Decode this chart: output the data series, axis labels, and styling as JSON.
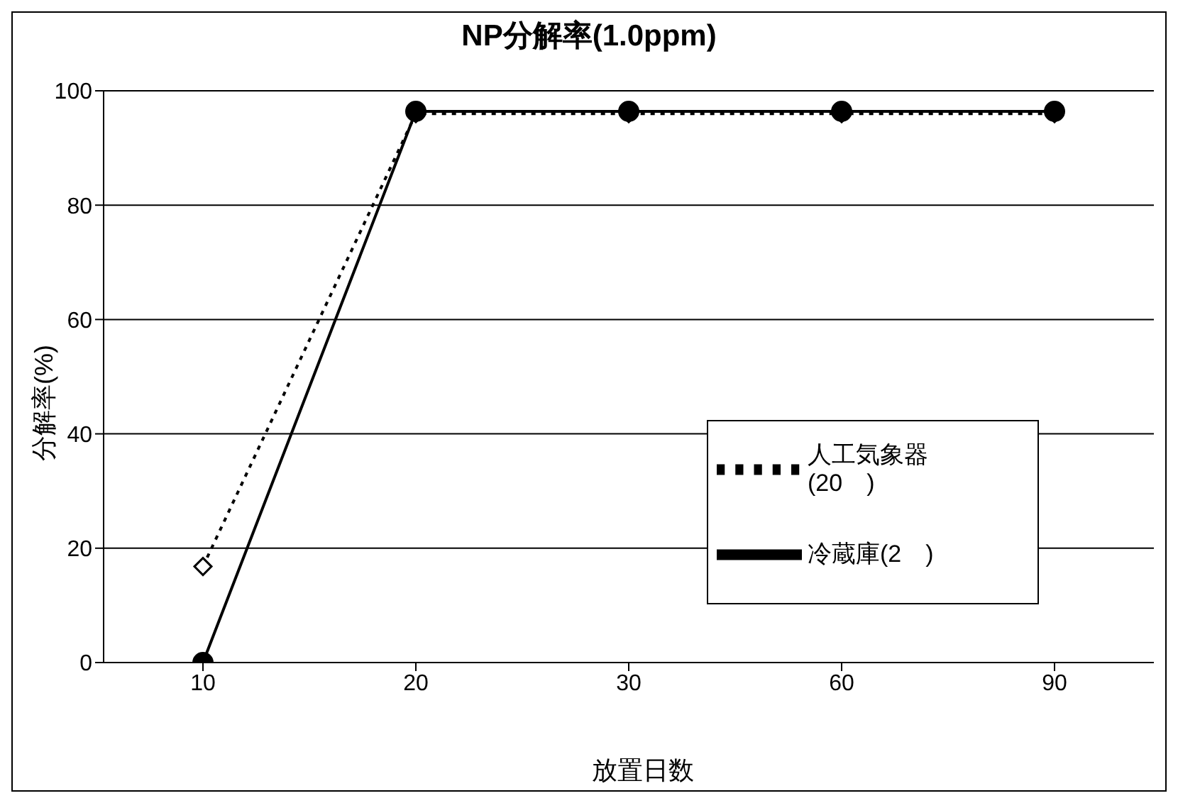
{
  "chart_data": {
    "type": "line",
    "title": "NP分解率(1.0ppm)",
    "xlabel": "放置日数",
    "ylabel": "分解率(%)",
    "categories": [
      "10",
      "20",
      "30",
      "60",
      "90"
    ],
    "ylim": [
      0,
      100
    ],
    "yticks": [
      0,
      20,
      40,
      60,
      80,
      100
    ],
    "grid": "y",
    "legend": "right",
    "series": [
      {
        "name": "人工気象器(20　)",
        "color": "#000000",
        "marker": "diamond",
        "line_style": "dotted",
        "values": [
          16.8,
          96,
          96,
          96,
          96
        ]
      },
      {
        "name": "冷蔵庫(2　)",
        "color": "#000000",
        "marker": "circle",
        "line_style": "solid",
        "values": [
          0,
          96.4,
          96.4,
          96.4,
          96.4
        ]
      }
    ]
  }
}
